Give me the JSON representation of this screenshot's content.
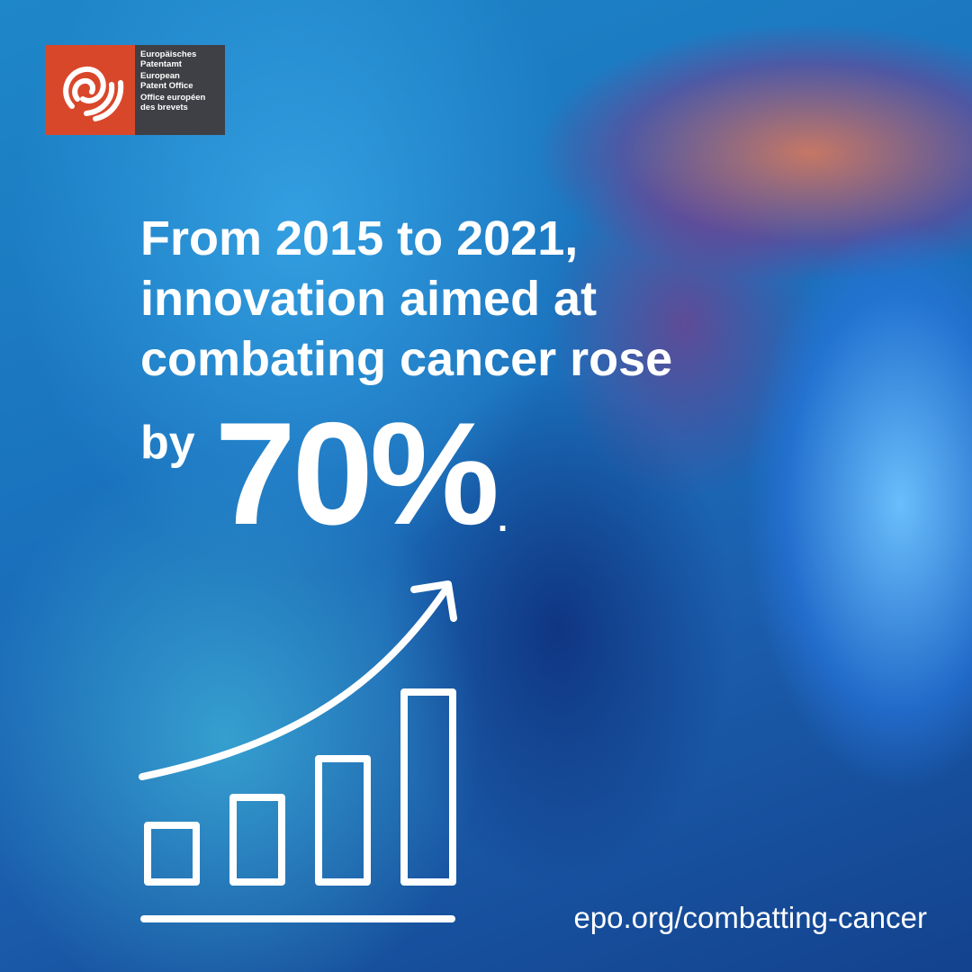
{
  "logo": {
    "line1": "Europäisches",
    "line2": "Patentamt",
    "line3": "European",
    "line4": "Patent Office",
    "line5": "Office européen",
    "line6": "des brevets",
    "colors": {
      "mark_bg": "#d9472b",
      "text_bg": "#3f4046"
    }
  },
  "headline": {
    "line1": "From 2015 to 2021,",
    "line2": "innovation aimed at",
    "line3": "combating cancer rose",
    "by": "by",
    "percent": "70%",
    "period": "."
  },
  "icon": "rising-bar-chart-icon",
  "url": "epo.org/combatting-cancer"
}
